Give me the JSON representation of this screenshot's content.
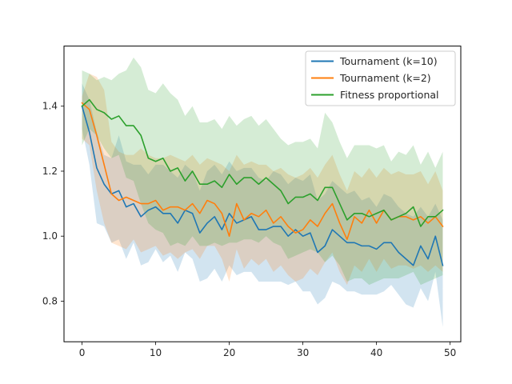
{
  "chart_data": {
    "type": "line",
    "xlim": [
      -2.45,
      51.45
    ],
    "ylim": [
      0.675,
      1.585
    ],
    "x_ticks": [
      0,
      10,
      20,
      30,
      40,
      50
    ],
    "y_ticks": [
      0.8,
      1.0,
      1.2,
      1.4
    ],
    "y_tick_format": "0.0",
    "grid": false,
    "legend_position": "top-right",
    "x": [
      0,
      1,
      2,
      3,
      4,
      5,
      6,
      7,
      8,
      9,
      10,
      11,
      12,
      13,
      14,
      15,
      16,
      17,
      18,
      19,
      20,
      21,
      22,
      23,
      24,
      25,
      26,
      27,
      28,
      29,
      30,
      31,
      32,
      33,
      34,
      35,
      36,
      37,
      38,
      39,
      40,
      41,
      42,
      43,
      44,
      45,
      46,
      47,
      48,
      49
    ],
    "series": [
      {
        "name": "Tournament (k=10)",
        "color": "#1f77b4",
        "band_color": "#1f77b4",
        "mean": [
          1.4,
          1.32,
          1.21,
          1.16,
          1.13,
          1.14,
          1.09,
          1.1,
          1.06,
          1.08,
          1.09,
          1.07,
          1.07,
          1.04,
          1.08,
          1.07,
          1.01,
          1.04,
          1.06,
          1.02,
          1.07,
          1.04,
          1.05,
          1.06,
          1.02,
          1.02,
          1.03,
          1.03,
          1.0,
          1.02,
          1.0,
          1.01,
          0.95,
          0.97,
          1.02,
          1.0,
          0.98,
          0.98,
          0.97,
          0.97,
          0.96,
          0.98,
          0.98,
          0.95,
          0.93,
          0.91,
          0.97,
          0.93,
          1.0,
          0.91
        ],
        "upper": [
          1.47,
          1.42,
          1.32,
          1.25,
          1.24,
          1.31,
          1.23,
          1.22,
          1.22,
          1.19,
          1.22,
          1.22,
          1.2,
          1.18,
          1.22,
          1.2,
          1.14,
          1.2,
          1.22,
          1.19,
          1.23,
          1.2,
          1.21,
          1.21,
          1.18,
          1.17,
          1.2,
          1.19,
          1.16,
          1.18,
          1.17,
          1.19,
          1.11,
          1.13,
          1.17,
          1.15,
          1.13,
          1.14,
          1.11,
          1.12,
          1.09,
          1.13,
          1.12,
          1.09,
          1.07,
          1.06,
          1.09,
          1.06,
          1.1,
          1.05
        ],
        "lower": [
          1.33,
          1.22,
          1.04,
          1.03,
          0.98,
          0.99,
          0.93,
          0.98,
          0.91,
          0.92,
          0.96,
          0.92,
          0.94,
          0.89,
          0.95,
          0.93,
          0.86,
          0.87,
          0.9,
          0.86,
          0.91,
          0.88,
          0.89,
          0.89,
          0.86,
          0.86,
          0.86,
          0.86,
          0.85,
          0.86,
          0.83,
          0.83,
          0.79,
          0.81,
          0.86,
          0.85,
          0.83,
          0.83,
          0.82,
          0.82,
          0.82,
          0.83,
          0.85,
          0.82,
          0.79,
          0.78,
          0.84,
          0.8,
          0.89,
          0.72
        ]
      },
      {
        "name": "Tournament (k=2)",
        "color": "#ff7f0e",
        "band_color": "#ff7f0e",
        "mean": [
          1.41,
          1.39,
          1.31,
          1.22,
          1.13,
          1.11,
          1.12,
          1.11,
          1.1,
          1.1,
          1.11,
          1.08,
          1.09,
          1.09,
          1.08,
          1.1,
          1.07,
          1.11,
          1.1,
          1.07,
          1.0,
          1.1,
          1.05,
          1.07,
          1.06,
          1.08,
          1.04,
          1.06,
          1.03,
          1.01,
          1.02,
          1.05,
          1.03,
          1.07,
          1.1,
          1.04,
          0.99,
          1.06,
          1.04,
          1.08,
          1.04,
          1.08,
          1.05,
          1.06,
          1.06,
          1.05,
          1.06,
          1.04,
          1.06,
          1.03
        ],
        "upper": [
          1.43,
          1.5,
          1.49,
          1.45,
          1.29,
          1.26,
          1.25,
          1.25,
          1.27,
          1.25,
          1.24,
          1.24,
          1.25,
          1.24,
          1.23,
          1.25,
          1.22,
          1.24,
          1.23,
          1.22,
          1.2,
          1.25,
          1.22,
          1.23,
          1.22,
          1.22,
          1.2,
          1.21,
          1.19,
          1.18,
          1.19,
          1.21,
          1.18,
          1.22,
          1.25,
          1.19,
          1.14,
          1.2,
          1.18,
          1.21,
          1.18,
          1.21,
          1.19,
          1.2,
          1.19,
          1.19,
          1.2,
          1.16,
          1.2,
          1.14
        ],
        "lower": [
          1.3,
          1.28,
          1.14,
          1.04,
          0.98,
          0.97,
          0.96,
          0.99,
          0.95,
          0.96,
          0.97,
          0.94,
          0.95,
          0.93,
          0.95,
          0.96,
          0.93,
          0.97,
          0.97,
          0.93,
          0.86,
          0.96,
          0.9,
          0.93,
          0.91,
          0.93,
          0.89,
          0.91,
          0.88,
          0.86,
          0.87,
          0.9,
          0.88,
          0.92,
          0.95,
          0.89,
          0.85,
          0.91,
          0.89,
          0.93,
          0.89,
          0.93,
          0.9,
          0.91,
          0.91,
          0.9,
          0.91,
          0.89,
          0.91,
          0.89
        ]
      },
      {
        "name": "Fitness proportional",
        "color": "#2ca02c",
        "band_color": "#2ca02c",
        "mean": [
          1.4,
          1.42,
          1.39,
          1.38,
          1.36,
          1.37,
          1.34,
          1.34,
          1.31,
          1.24,
          1.23,
          1.24,
          1.2,
          1.21,
          1.17,
          1.2,
          1.16,
          1.16,
          1.17,
          1.15,
          1.19,
          1.16,
          1.18,
          1.18,
          1.16,
          1.18,
          1.16,
          1.14,
          1.1,
          1.12,
          1.12,
          1.13,
          1.11,
          1.15,
          1.15,
          1.1,
          1.05,
          1.07,
          1.07,
          1.06,
          1.07,
          1.08,
          1.05,
          1.06,
          1.07,
          1.09,
          1.03,
          1.06,
          1.06,
          1.08
        ],
        "upper": [
          1.51,
          1.5,
          1.48,
          1.49,
          1.48,
          1.5,
          1.51,
          1.55,
          1.52,
          1.45,
          1.44,
          1.47,
          1.44,
          1.42,
          1.37,
          1.4,
          1.35,
          1.35,
          1.36,
          1.33,
          1.37,
          1.34,
          1.36,
          1.37,
          1.34,
          1.36,
          1.33,
          1.3,
          1.28,
          1.29,
          1.29,
          1.3,
          1.27,
          1.38,
          1.35,
          1.29,
          1.24,
          1.28,
          1.28,
          1.28,
          1.27,
          1.28,
          1.23,
          1.26,
          1.25,
          1.28,
          1.22,
          1.26,
          1.21,
          1.26
        ],
        "lower": [
          1.28,
          1.33,
          1.31,
          1.27,
          1.24,
          1.25,
          1.18,
          1.17,
          1.1,
          1.04,
          1.02,
          1.01,
          0.97,
          0.98,
          0.97,
          1.0,
          0.97,
          0.97,
          0.98,
          0.97,
          0.98,
          0.98,
          0.99,
          0.99,
          0.98,
          1.0,
          0.98,
          0.97,
          0.93,
          0.94,
          0.95,
          0.96,
          0.95,
          0.92,
          0.94,
          0.91,
          0.86,
          0.87,
          0.87,
          0.85,
          0.86,
          0.87,
          0.87,
          0.87,
          0.88,
          0.89,
          0.85,
          0.86,
          0.87,
          0.88
        ]
      }
    ]
  }
}
